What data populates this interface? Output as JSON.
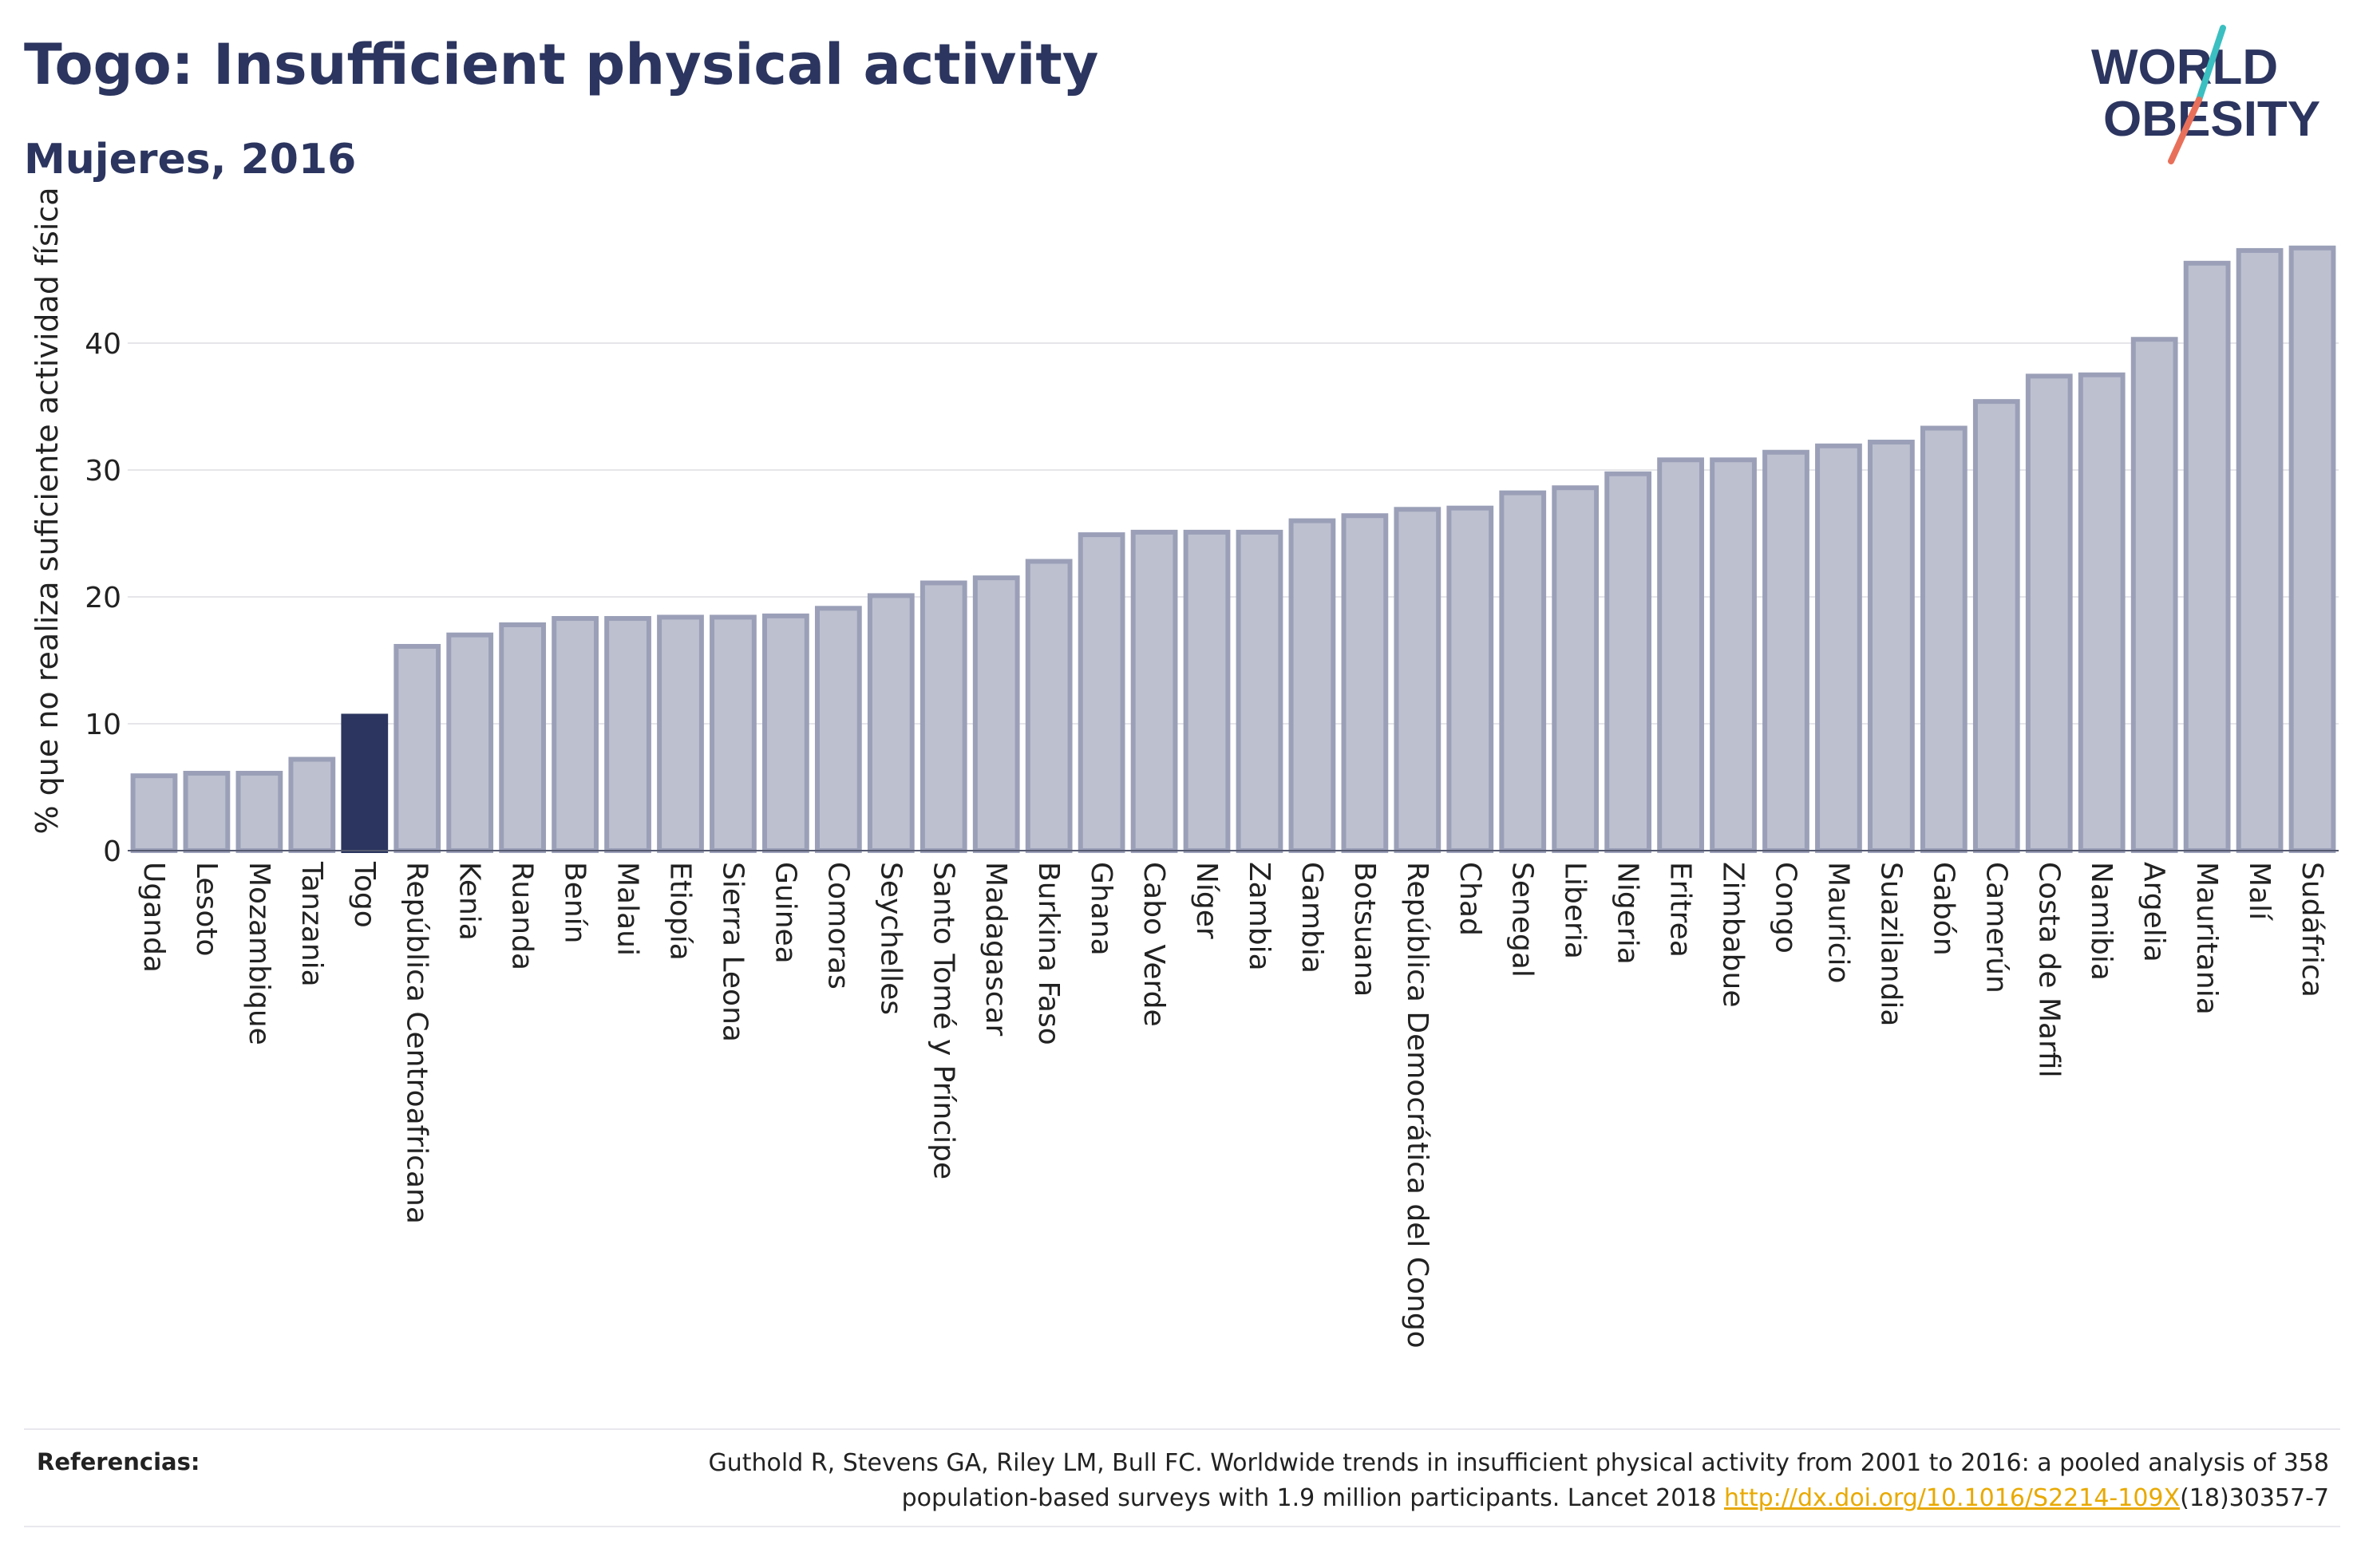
{
  "header": {
    "title": "Togo: Insufficient physical activity",
    "subtitle": "Mujeres, 2016"
  },
  "logo": {
    "line1": "WORLD",
    "line2": "OBESITY",
    "accent_colors": [
      "#3bbfc1",
      "#e8705a"
    ]
  },
  "colors": {
    "bar": "#bdc0cf",
    "bar_stroke": "#9ba0b8",
    "highlight": "#2b355f",
    "grid": "#e6e6ea",
    "axis_text": "#222222"
  },
  "chart_data": {
    "type": "bar",
    "ylabel": "% que no realiza suficiente actividad física",
    "xlabel": "",
    "ylim": [
      0,
      50
    ],
    "yticks": [
      0,
      10,
      20,
      30,
      40
    ],
    "grid": true,
    "highlight": "Togo",
    "categories": [
      "Uganda",
      "Lesoto",
      "Mozambique",
      "Tanzania",
      "Togo",
      "República Centroafricana",
      "Kenia",
      "Ruanda",
      "Benín",
      "Malaui",
      "Etiopía",
      "Sierra Leona",
      "Guinea",
      "Comoras",
      "Seychelles",
      "Santo Tomé y Príncipe",
      "Madagascar",
      "Burkina Faso",
      "Ghana",
      "Cabo Verde",
      "Níger",
      "Zambia",
      "Gambia",
      "Botsuana",
      "República Democrática del Congo",
      "Chad",
      "Senegal",
      "Liberia",
      "Nigeria",
      "Eritrea",
      "Zimbabue",
      "Congo",
      "Mauricio",
      "Suazilandia",
      "Gabón",
      "Camerún",
      "Costa de Marfil",
      "Namibia",
      "Argelia",
      "Mauritania",
      "Malí",
      "Sudáfrica"
    ],
    "values": [
      5.9,
      6.1,
      6.1,
      7.2,
      10.6,
      16.1,
      17.0,
      17.8,
      18.3,
      18.3,
      18.4,
      18.4,
      18.5,
      19.1,
      20.1,
      21.1,
      21.5,
      22.8,
      24.9,
      25.1,
      25.1,
      25.1,
      26.0,
      26.4,
      26.9,
      27.0,
      28.2,
      28.6,
      29.7,
      30.8,
      30.8,
      31.4,
      31.9,
      32.2,
      33.3,
      35.4,
      37.4,
      37.5,
      40.3,
      46.3,
      47.3,
      47.5
    ]
  },
  "references": {
    "label": "Referencias:",
    "text_line1": "Guthold R, Stevens GA, Riley LM, Bull FC. Worldwide trends in insufficient physical activity from 2001 to 2016: a pooled analysis of 358",
    "text_line2_before": "population-based surveys with 1.9 million participants. Lancet 2018 ",
    "link": "http://dx.doi.org/10.1016/S2214-109X",
    "text_line2_after": "(18)30357-7"
  }
}
